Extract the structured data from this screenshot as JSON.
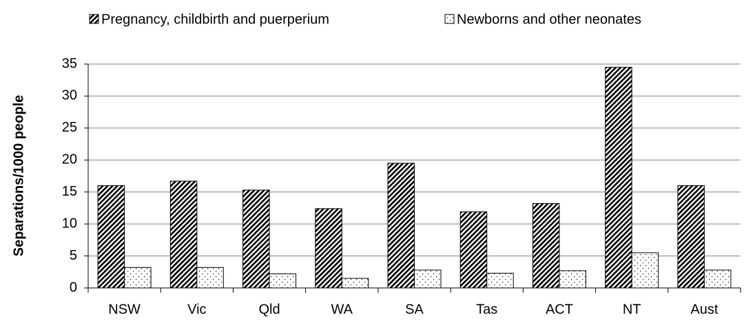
{
  "chart_data": {
    "type": "bar",
    "y_label": "Separations/1000 people",
    "categories": [
      "NSW",
      "Vic",
      "Qld",
      "WA",
      "SA",
      "Tas",
      "ACT",
      "NT",
      "Aust"
    ],
    "series": [
      {
        "name": "Pregnancy, childbirth and puerperium",
        "color": "#000000",
        "pattern": "diagonal",
        "values": [
          16.0,
          16.7,
          15.3,
          12.4,
          19.5,
          11.9,
          13.2,
          34.5,
          16.0
        ]
      },
      {
        "name": "Newborns and other neonates",
        "color": "#000000",
        "pattern": "dots",
        "values": [
          3.2,
          3.2,
          2.2,
          1.5,
          2.8,
          2.3,
          2.7,
          5.5,
          2.8
        ]
      }
    ],
    "ylim": [
      0,
      35
    ],
    "yticks": [
      0,
      5,
      10,
      15,
      20,
      25,
      30,
      35
    ],
    "grid": true,
    "legend": "top"
  }
}
